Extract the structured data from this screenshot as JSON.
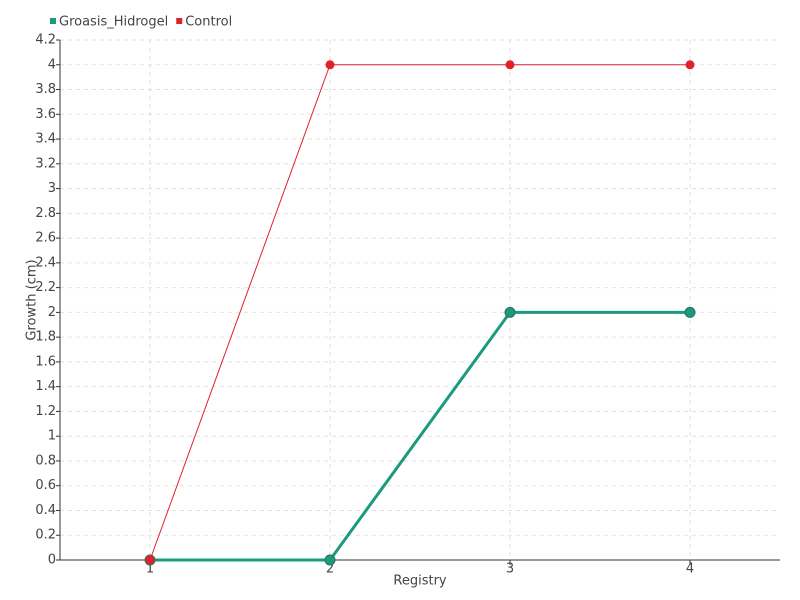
{
  "chart_data": {
    "type": "line",
    "x_label": "Registry",
    "y_label": "Growth (cm)",
    "categories": [
      "1",
      "2",
      "3",
      "4"
    ],
    "series": [
      {
        "name": "Groasis_Hidrogel",
        "color": "#1b9a7e",
        "values": [
          0,
          0,
          2,
          2
        ]
      },
      {
        "name": "Control",
        "color": "#e3212d",
        "values": [
          0,
          4,
          4,
          4
        ]
      }
    ],
    "ylim": [
      0,
      4.2
    ],
    "yticks": [
      0,
      0.2,
      0.4,
      0.6,
      0.8,
      1,
      1.2,
      1.4,
      1.6,
      1.8,
      2,
      2.2,
      2.4,
      2.6,
      2.8,
      3,
      3.2,
      3.4,
      3.6,
      3.8,
      4,
      4.2
    ],
    "grid": true,
    "legend": "top-left"
  }
}
